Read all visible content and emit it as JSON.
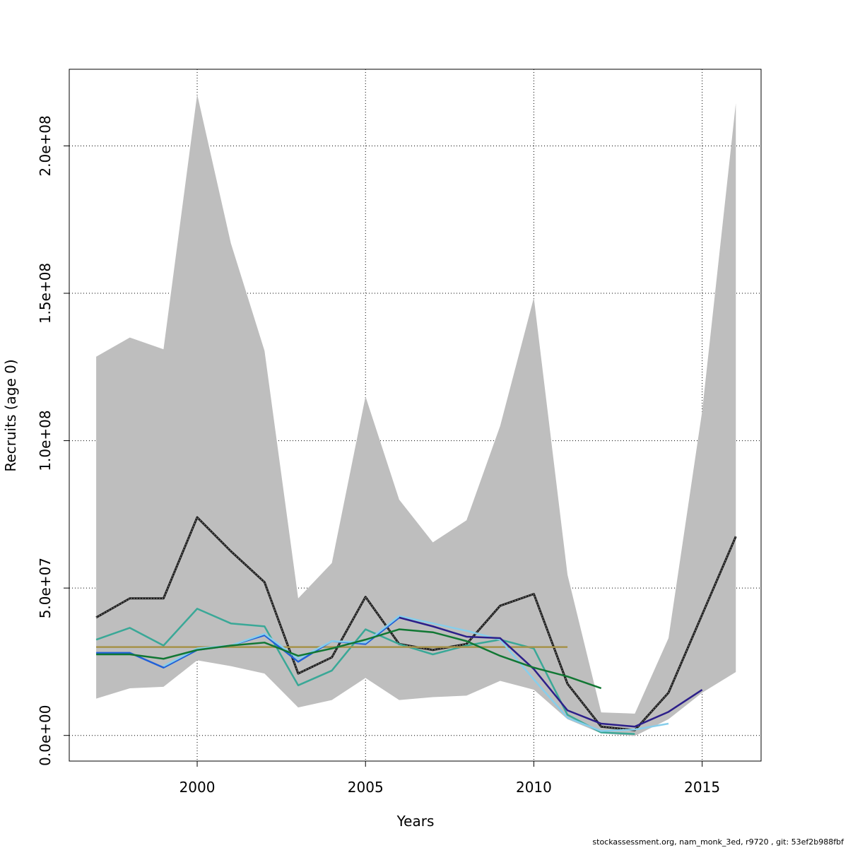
{
  "chart_data": {
    "type": "line",
    "xlabel": "Years",
    "ylabel": "Recruits (age 0)",
    "xlim": [
      1996.2,
      2016.75
    ],
    "ylim": [
      -8700000,
      226000000
    ],
    "x_ticks": [
      2000,
      2005,
      2010,
      2015
    ],
    "x_tick_labels": [
      "2000",
      "2005",
      "2010",
      "2015"
    ],
    "y_ticks": [
      0,
      50000000,
      100000000,
      150000000,
      200000000
    ],
    "y_tick_labels": [
      "0.0e+00",
      "5.0e+07",
      "1.0e+08",
      "1.5e+08",
      "2.0e+08"
    ],
    "grid": true,
    "band": {
      "color": "#bebebe",
      "x": [
        1997,
        1998,
        1999,
        2000,
        2001,
        2002,
        2003,
        2004,
        2005,
        2006,
        2007,
        2008,
        2009,
        2010,
        2011,
        2012,
        2013,
        2014,
        2015,
        2016
      ],
      "upper": [
        128500000,
        135000000,
        131000000,
        217500000,
        167000000,
        130500000,
        46500000,
        58500000,
        115000000,
        80000000,
        65500000,
        73000000,
        105000000,
        148500000,
        54500000,
        7800000,
        7400000,
        33000000,
        110000000,
        214500000
      ],
      "lower": [
        12500000,
        16000000,
        16500000,
        25500000,
        23500000,
        21000000,
        9500000,
        12000000,
        19500000,
        12000000,
        13000000,
        13500000,
        18500000,
        15500000,
        5500000,
        700000,
        -200000,
        5500000,
        14500000,
        21500000
      ]
    },
    "series": [
      {
        "color": "#1a1a1a",
        "dashed": true,
        "x": [
          1997,
          1998,
          1999,
          2000,
          2001,
          2002,
          2003,
          2004,
          2005,
          2006,
          2007,
          2008,
          2009,
          2010,
          2011,
          2012,
          2013,
          2014,
          2015,
          2016
        ],
        "y": [
          40000000,
          46500000,
          46500000,
          74000000,
          62500000,
          52000000,
          21000000,
          26500000,
          47000000,
          31000000,
          29000000,
          31000000,
          44000000,
          48000000,
          17500000,
          3000000,
          1800000,
          14500000,
          41000000,
          67500000
        ]
      },
      {
        "color": "#3aa897",
        "x": [
          1997,
          1998,
          1999,
          2000,
          2001,
          2002,
          2003,
          2004,
          2005,
          2006,
          2007,
          2008,
          2009,
          2010,
          2011,
          2012,
          2013
        ],
        "y": [
          32500000,
          36500000,
          30500000,
          43000000,
          38000000,
          37000000,
          17000000,
          22000000,
          36000000,
          31000000,
          27500000,
          30500000,
          32500000,
          29500000,
          7000000,
          1000000,
          500000
        ]
      },
      {
        "color": "#a6924a",
        "x": [
          1997,
          2011
        ],
        "y": [
          30000000,
          30000000
        ]
      },
      {
        "color": "#2060d8",
        "x": [
          1997,
          1998,
          1999,
          2000,
          2001,
          2002,
          2003,
          2004,
          2005,
          2006
        ],
        "y": [
          28000000,
          28000000,
          23000000,
          29000000,
          30500000,
          34000000,
          25000000,
          32000000,
          31000000,
          40000000
        ]
      },
      {
        "color": "#87ceeb",
        "x": [
          1999,
          2000,
          2001,
          2002,
          2003,
          2004,
          2005,
          2006,
          2007,
          2008,
          2009,
          2010,
          2011,
          2012,
          2013,
          2014
        ],
        "y": [
          23500000,
          29500000,
          30500000,
          34500000,
          26000000,
          32000000,
          31500000,
          40500000,
          38000000,
          35500000,
          32500000,
          19000000,
          6000000,
          1500000,
          2000000,
          4000000
        ]
      },
      {
        "color": "#2c1f8a",
        "x": [
          2006,
          2007,
          2008,
          2009,
          2010,
          2011,
          2012,
          2013,
          2014,
          2015
        ],
        "y": [
          40000000,
          37000000,
          33500000,
          33000000,
          22500000,
          8500000,
          4000000,
          3000000,
          8000000,
          15500000
        ]
      },
      {
        "color": "#117733",
        "x": [
          1997,
          1998,
          1999,
          2000,
          2001,
          2002,
          2003,
          2004,
          2005,
          2006,
          2007,
          2008,
          2009,
          2010,
          2011,
          2012
        ],
        "y": [
          27500000,
          27500000,
          26000000,
          29000000,
          30500000,
          31500000,
          27000000,
          29500000,
          32500000,
          36000000,
          35000000,
          32000000,
          27000000,
          23000000,
          20000000,
          16000000
        ]
      }
    ]
  },
  "footer": {
    "text": "stockassessment.org, nam_monk_3ed, r9720 , git: 53ef2b988fbf"
  }
}
